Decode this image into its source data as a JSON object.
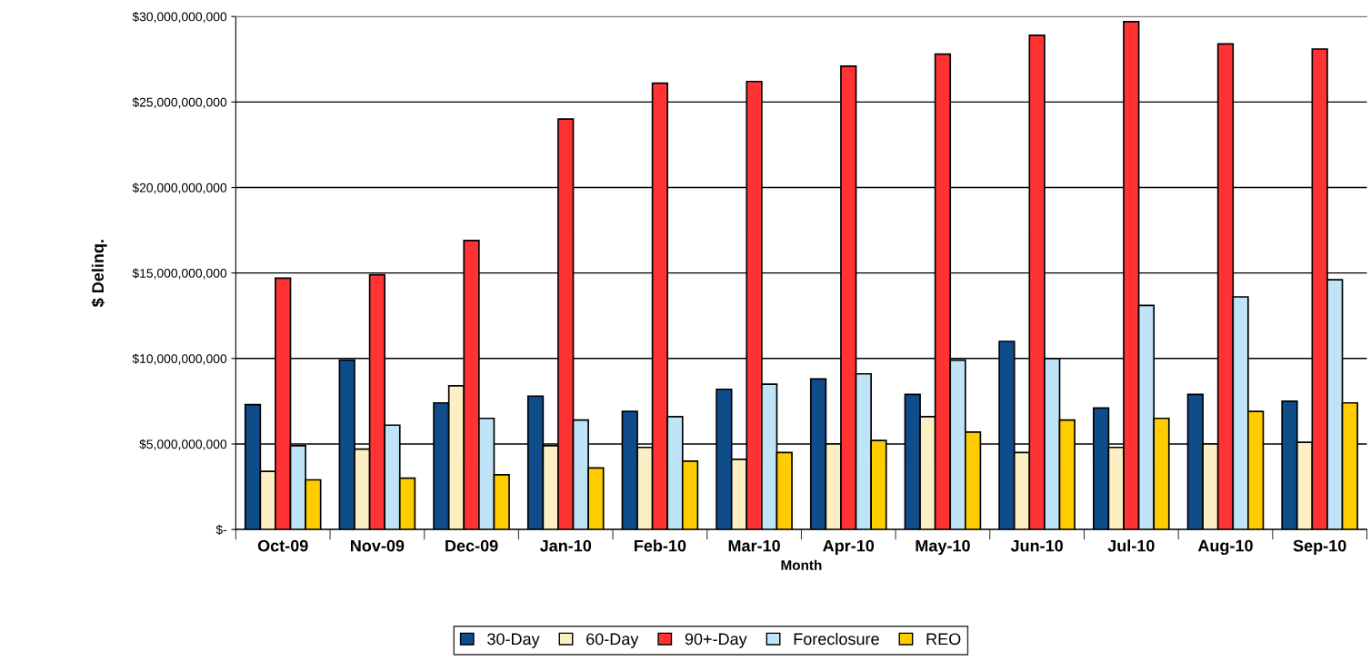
{
  "chart_data": {
    "type": "bar",
    "xlabel": "Month",
    "ylabel": "$ Delinq.",
    "categories": [
      "Oct-09",
      "Nov-09",
      "Dec-09",
      "Jan-10",
      "Feb-10",
      "Mar-10",
      "Apr-10",
      "May-10",
      "Jun-10",
      "Jul-10",
      "Aug-10",
      "Sep-10"
    ],
    "series": [
      {
        "name": "30-Day",
        "color": "#0f4c8a",
        "values": [
          7300000000,
          9900000000,
          7400000000,
          7800000000,
          6900000000,
          8200000000,
          8800000000,
          7900000000,
          11000000000,
          7100000000,
          7900000000,
          7500000000
        ]
      },
      {
        "name": "60-Day",
        "color": "#fcefc4",
        "values": [
          3400000000,
          4700000000,
          8400000000,
          4900000000,
          4800000000,
          4100000000,
          5000000000,
          6600000000,
          4500000000,
          4800000000,
          5000000000,
          5100000000
        ]
      },
      {
        "name": "90+-Day",
        "color": "#ff3333",
        "values": [
          14700000000,
          14900000000,
          16900000000,
          24000000000,
          26100000000,
          26200000000,
          27100000000,
          27800000000,
          28900000000,
          29700000000,
          28400000000,
          28100000000
        ]
      },
      {
        "name": "Foreclosure",
        "color": "#bfe3f7",
        "values": [
          4900000000,
          6100000000,
          6500000000,
          6400000000,
          6600000000,
          8500000000,
          9100000000,
          9900000000,
          10000000000,
          13100000000,
          13600000000,
          14600000000
        ]
      },
      {
        "name": "REO",
        "color": "#ffcc00",
        "values": [
          2900000000,
          3000000000,
          3200000000,
          3600000000,
          4000000000,
          4500000000,
          5200000000,
          5700000000,
          6400000000,
          6500000000,
          6900000000,
          7400000000
        ]
      }
    ],
    "ylim": [
      0,
      30000000000
    ],
    "yticks": [
      {
        "value": 0,
        "label": "$-"
      },
      {
        "value": 5000000000,
        "label": "$5,000,000,000"
      },
      {
        "value": 10000000000,
        "label": "$10,000,000,000"
      },
      {
        "value": 15000000000,
        "label": "$15,000,000,000"
      },
      {
        "value": 20000000000,
        "label": "$20,000,000,000"
      },
      {
        "value": 25000000000,
        "label": "$25,000,000,000"
      },
      {
        "value": 30000000000,
        "label": "$30,000,000,000"
      }
    ],
    "grid": "y",
    "legend": "bottom"
  }
}
